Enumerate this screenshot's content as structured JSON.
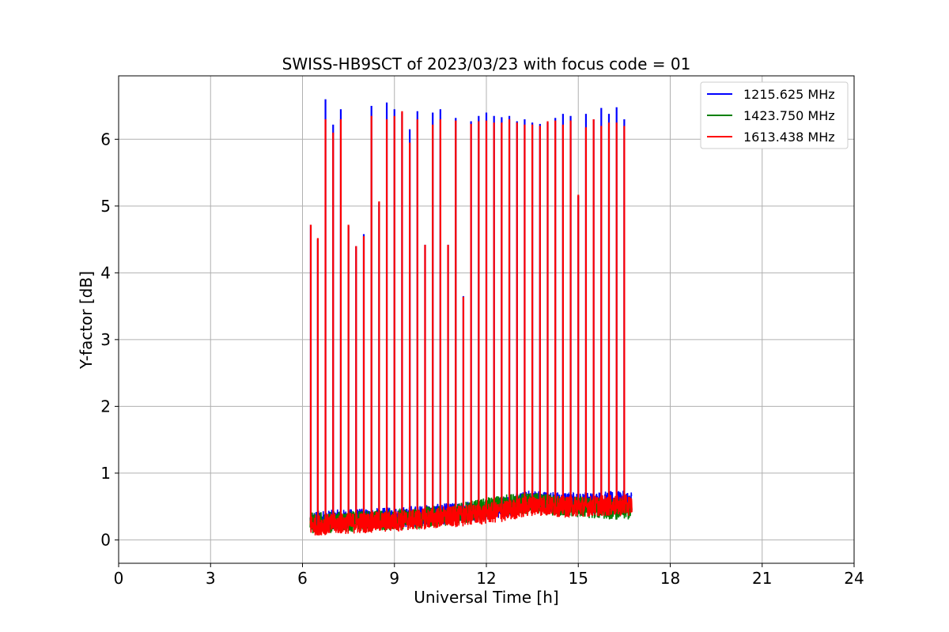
{
  "chart_data": {
    "type": "line",
    "title": "SWISS-HB9SCT of 2023/03/23 with focus code = 01",
    "xlabel": "Universal Time [h]",
    "ylabel": "Y-factor [dB]",
    "xlim": [
      0,
      24
    ],
    "ylim": [
      -0.35,
      6.95
    ],
    "xticks": [
      0,
      3,
      6,
      9,
      12,
      15,
      18,
      21,
      24
    ],
    "yticks": [
      0,
      1,
      2,
      3,
      4,
      5,
      6
    ],
    "grid": true,
    "legend_position": "top-right",
    "x_start": 6.25,
    "x_end": 16.75,
    "series": [
      {
        "name": "1215.625 MHz",
        "color": "#0000ff",
        "baseline": [
          [
            6.25,
            0.28
          ],
          [
            9.0,
            0.33
          ],
          [
            11.0,
            0.4
          ],
          [
            12.5,
            0.48
          ],
          [
            13.5,
            0.6
          ],
          [
            14.5,
            0.55
          ],
          [
            16.75,
            0.58
          ]
        ],
        "peaks": [
          [
            6.27,
            4.72
          ],
          [
            6.5,
            4.5
          ],
          [
            6.75,
            6.6
          ],
          [
            7.0,
            6.22
          ],
          [
            7.25,
            6.45
          ],
          [
            7.5,
            4.7
          ],
          [
            7.75,
            4.4
          ],
          [
            8.0,
            4.58
          ],
          [
            8.25,
            6.5
          ],
          [
            8.5,
            5.05
          ],
          [
            8.75,
            6.55
          ],
          [
            9.0,
            6.45
          ],
          [
            9.25,
            6.4
          ],
          [
            9.5,
            6.15
          ],
          [
            9.75,
            6.42
          ],
          [
            10.0,
            4.42
          ],
          [
            10.25,
            6.4
          ],
          [
            10.5,
            6.45
          ],
          [
            10.75,
            4.42
          ],
          [
            11.0,
            6.32
          ],
          [
            11.25,
            3.65
          ],
          [
            11.5,
            6.27
          ],
          [
            11.75,
            6.35
          ],
          [
            12.0,
            6.4
          ],
          [
            12.25,
            6.35
          ],
          [
            12.5,
            6.33
          ],
          [
            12.75,
            6.35
          ],
          [
            13.0,
            6.27
          ],
          [
            13.25,
            6.3
          ],
          [
            13.5,
            6.25
          ],
          [
            13.75,
            6.23
          ],
          [
            14.0,
            6.25
          ],
          [
            14.25,
            6.32
          ],
          [
            14.5,
            6.38
          ],
          [
            14.75,
            6.35
          ],
          [
            15.0,
            5.15
          ],
          [
            15.25,
            6.38
          ],
          [
            15.5,
            6.3
          ],
          [
            15.75,
            6.47
          ],
          [
            16.0,
            6.38
          ],
          [
            16.25,
            6.48
          ],
          [
            16.5,
            6.3
          ]
        ]
      },
      {
        "name": "1423.750 MHz",
        "color": "#008000",
        "baseline": [
          [
            6.25,
            0.25
          ],
          [
            9.0,
            0.3
          ],
          [
            11.0,
            0.38
          ],
          [
            12.5,
            0.52
          ],
          [
            13.5,
            0.55
          ],
          [
            14.5,
            0.5
          ],
          [
            16.75,
            0.45
          ]
        ],
        "peaks": []
      },
      {
        "name": "1613.438 MHz",
        "color": "#ff0000",
        "baseline": [
          [
            6.25,
            0.22
          ],
          [
            9.0,
            0.28
          ],
          [
            11.0,
            0.35
          ],
          [
            12.5,
            0.42
          ],
          [
            13.5,
            0.52
          ],
          [
            14.5,
            0.5
          ],
          [
            16.75,
            0.52
          ]
        ],
        "peaks": [
          [
            6.27,
            4.72
          ],
          [
            6.5,
            4.52
          ],
          [
            6.75,
            6.3
          ],
          [
            7.0,
            6.1
          ],
          [
            7.25,
            6.3
          ],
          [
            7.5,
            4.72
          ],
          [
            7.75,
            4.4
          ],
          [
            8.0,
            4.55
          ],
          [
            8.25,
            6.35
          ],
          [
            8.5,
            5.07
          ],
          [
            8.75,
            6.3
          ],
          [
            9.0,
            6.35
          ],
          [
            9.25,
            6.42
          ],
          [
            9.5,
            5.95
          ],
          [
            9.75,
            6.3
          ],
          [
            10.0,
            4.42
          ],
          [
            10.25,
            6.22
          ],
          [
            10.5,
            6.3
          ],
          [
            10.75,
            4.42
          ],
          [
            11.0,
            6.28
          ],
          [
            11.25,
            3.64
          ],
          [
            11.5,
            6.23
          ],
          [
            11.75,
            6.27
          ],
          [
            12.0,
            6.28
          ],
          [
            12.25,
            6.25
          ],
          [
            12.5,
            6.25
          ],
          [
            12.75,
            6.3
          ],
          [
            13.0,
            6.25
          ],
          [
            13.25,
            6.22
          ],
          [
            13.5,
            6.22
          ],
          [
            13.75,
            6.2
          ],
          [
            14.0,
            6.27
          ],
          [
            14.25,
            6.28
          ],
          [
            14.5,
            6.22
          ],
          [
            14.75,
            6.28
          ],
          [
            15.0,
            5.17
          ],
          [
            15.25,
            6.18
          ],
          [
            15.5,
            6.3
          ],
          [
            15.75,
            6.2
          ],
          [
            16.0,
            6.25
          ],
          [
            16.25,
            6.25
          ],
          [
            16.5,
            6.2
          ]
        ]
      }
    ]
  }
}
